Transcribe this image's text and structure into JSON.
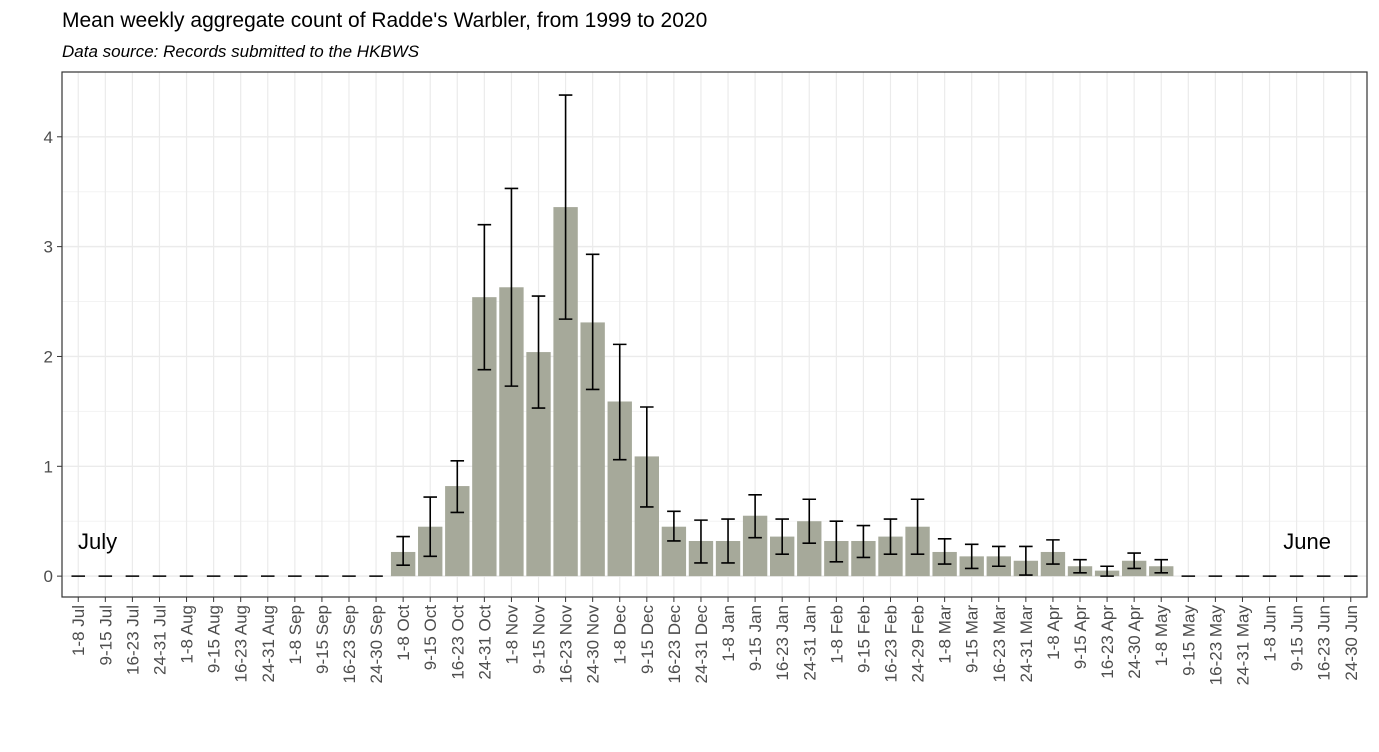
{
  "chart_data": {
    "type": "bar",
    "title": "Mean weekly aggregate count of Radde's Warbler, from 1999 to 2020",
    "subtitle": "Data source: Records submitted to the HKBWS",
    "annotations": [
      "July",
      "June"
    ],
    "categories": [
      "1-8 Jul",
      "9-15 Jul",
      "16-23 Jul",
      "24-31 Jul",
      "1-8 Aug",
      "9-15 Aug",
      "16-23 Aug",
      "24-31 Aug",
      "1-8 Sep",
      "9-15 Sep",
      "16-23 Sep",
      "24-30 Sep",
      "1-8 Oct",
      "9-15 Oct",
      "16-23 Oct",
      "24-31 Oct",
      "1-8 Nov",
      "9-15 Nov",
      "16-23 Nov",
      "24-30 Nov",
      "1-8 Dec",
      "9-15 Dec",
      "16-23 Dec",
      "24-31 Dec",
      "1-8 Jan",
      "9-15 Jan",
      "16-23 Jan",
      "24-31 Jan",
      "1-8 Feb",
      "9-15 Feb",
      "16-23 Feb",
      "24-29 Feb",
      "1-8 Mar",
      "9-15 Mar",
      "16-23 Mar",
      "24-31 Mar",
      "1-8 Apr",
      "9-15 Apr",
      "16-23 Apr",
      "24-30 Apr",
      "1-8 May",
      "9-15 May",
      "16-23 May",
      "24-31 May",
      "1-8 Jun",
      "9-15 Jun",
      "16-23 Jun",
      "24-30 Jun"
    ],
    "series": [
      {
        "color": "#a6a99a",
        "values": [
          0,
          0,
          0,
          0,
          0,
          0,
          0,
          0,
          0,
          0,
          0,
          0,
          0.22,
          0.45,
          0.82,
          2.54,
          2.63,
          2.04,
          3.36,
          2.31,
          1.59,
          1.09,
          0.45,
          0.32,
          0.32,
          0.55,
          0.36,
          0.5,
          0.32,
          0.32,
          0.36,
          0.45,
          0.22,
          0.18,
          0.18,
          0.14,
          0.22,
          0.09,
          0.05,
          0.14,
          0.09,
          0,
          0,
          0,
          0,
          0,
          0,
          0
        ],
        "lower": [
          0,
          0,
          0,
          0,
          0,
          0,
          0,
          0,
          0,
          0,
          0,
          0,
          0.1,
          0.18,
          0.58,
          1.88,
          1.73,
          1.53,
          2.34,
          1.7,
          1.06,
          0.63,
          0.32,
          0.12,
          0.12,
          0.35,
          0.2,
          0.3,
          0.13,
          0.17,
          0.2,
          0.2,
          0.11,
          0.07,
          0.09,
          0.01,
          0.11,
          0.03,
          0.0,
          0.07,
          0.03,
          0,
          0,
          0,
          0,
          0,
          0,
          0
        ],
        "upper": [
          0,
          0,
          0,
          0,
          0,
          0,
          0,
          0,
          0,
          0,
          0,
          0,
          0.36,
          0.72,
          1.05,
          3.2,
          3.53,
          2.55,
          4.38,
          2.93,
          2.11,
          1.54,
          0.59,
          0.51,
          0.52,
          0.74,
          0.52,
          0.7,
          0.5,
          0.46,
          0.52,
          0.7,
          0.34,
          0.29,
          0.27,
          0.27,
          0.33,
          0.15,
          0.09,
          0.21,
          0.15,
          0,
          0,
          0,
          0,
          0,
          0,
          0
        ]
      }
    ],
    "ylim": [
      -0.19,
      4.59
    ],
    "yticks": [
      0,
      1,
      2,
      3,
      4
    ],
    "grid": true
  }
}
